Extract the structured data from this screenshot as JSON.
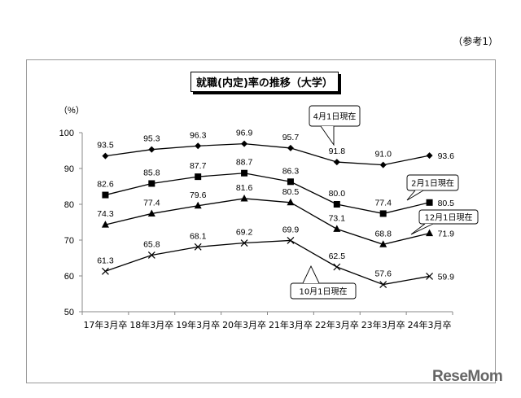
{
  "page": {
    "reference_label": "（参考1）",
    "logo_text": "ReseMom"
  },
  "chart_data": {
    "type": "line",
    "title": "就職(内定)率の推移（大学）",
    "xlabel": "",
    "ylabel": "（%）",
    "ylim": [
      50,
      100
    ],
    "yticks": [
      50,
      60,
      70,
      80,
      90,
      100
    ],
    "grid": false,
    "categories": [
      "17年3月卒",
      "18年3月卒",
      "19年3月卒",
      "20年3月卒",
      "21年3月卒",
      "22年3月卒",
      "23年3月卒",
      "24年3月卒"
    ],
    "series": [
      {
        "name": "4月1日現在",
        "marker": "diamond",
        "values": [
          93.5,
          95.3,
          96.3,
          96.9,
          95.7,
          91.8,
          91.0,
          93.6
        ]
      },
      {
        "name": "2月1日現在",
        "marker": "square",
        "values": [
          82.6,
          85.8,
          87.7,
          88.7,
          86.3,
          80.0,
          77.4,
          80.5
        ]
      },
      {
        "name": "12月1日現在",
        "marker": "triangle",
        "values": [
          74.3,
          77.4,
          79.6,
          81.6,
          80.5,
          73.1,
          68.8,
          71.9
        ]
      },
      {
        "name": "10月1日現在",
        "marker": "x",
        "values": [
          61.3,
          65.8,
          68.1,
          69.2,
          69.9,
          62.5,
          57.6,
          59.9
        ]
      }
    ]
  }
}
